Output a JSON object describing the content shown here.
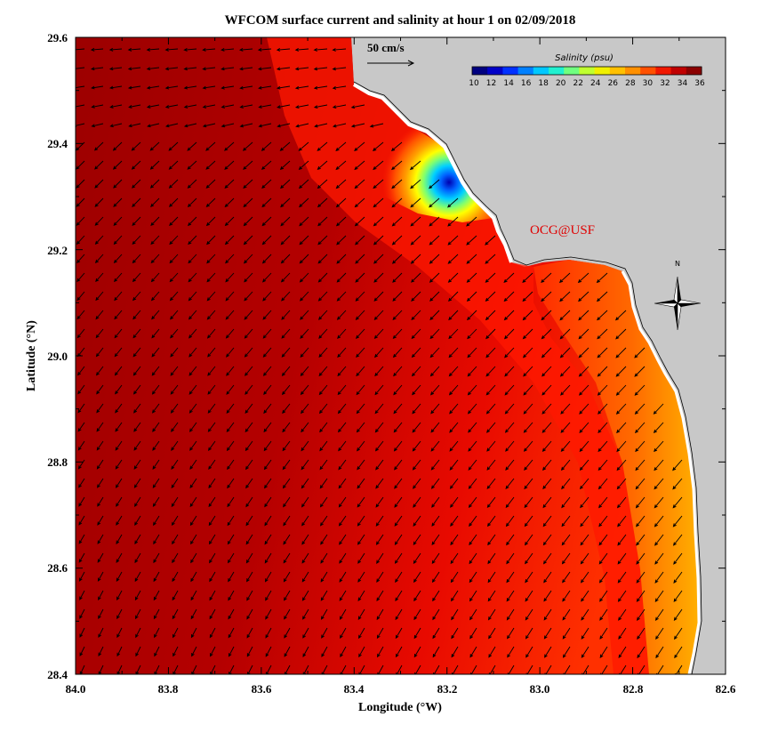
{
  "title": "WFCOM surface current and salinity at hour 1 on 02/09/2018",
  "xlabel": "Longitude (°W)",
  "ylabel": "Latitude (°N)",
  "x_ticks": [
    "84.0",
    "83.8",
    "83.6",
    "83.4",
    "83.2",
    "83.0",
    "82.8",
    "82.6"
  ],
  "y_ticks": [
    "29.6",
    "29.4",
    "29.2",
    "29.0",
    "28.8",
    "28.6",
    "28.4"
  ],
  "scale_label": "50 cm/s",
  "colorbar": {
    "title": "Salinity (psu)",
    "ticks": [
      "10",
      "12",
      "14",
      "16",
      "18",
      "20",
      "22",
      "24",
      "26",
      "28",
      "30",
      "32",
      "34",
      "36"
    ],
    "colors": [
      "#000080",
      "#0000c8",
      "#0030ff",
      "#0080ff",
      "#00c8ff",
      "#20f0d0",
      "#70ff80",
      "#c0ff30",
      "#f0f000",
      "#ffc000",
      "#ff9000",
      "#ff5000",
      "#f01800",
      "#c00000",
      "#8b0000"
    ]
  },
  "credit": "OCG@USF",
  "north_label": "N",
  "colors": {
    "land": "#c8c8c8",
    "sea_deep": "#a80000",
    "sea_mid": "#ff1a00",
    "credit": "#e00000"
  },
  "chart_data": {
    "type": "map",
    "lon_range_W": [
      84.0,
      82.6
    ],
    "lat_range_N": [
      28.4,
      29.6
    ],
    "salinity_range_psu": [
      10,
      36
    ],
    "fields": [
      "surface current vectors",
      "surface salinity"
    ],
    "low_salinity_plume": {
      "lon_W": 83.18,
      "lat_N": 29.32,
      "min_salinity_psu": 10
    }
  }
}
